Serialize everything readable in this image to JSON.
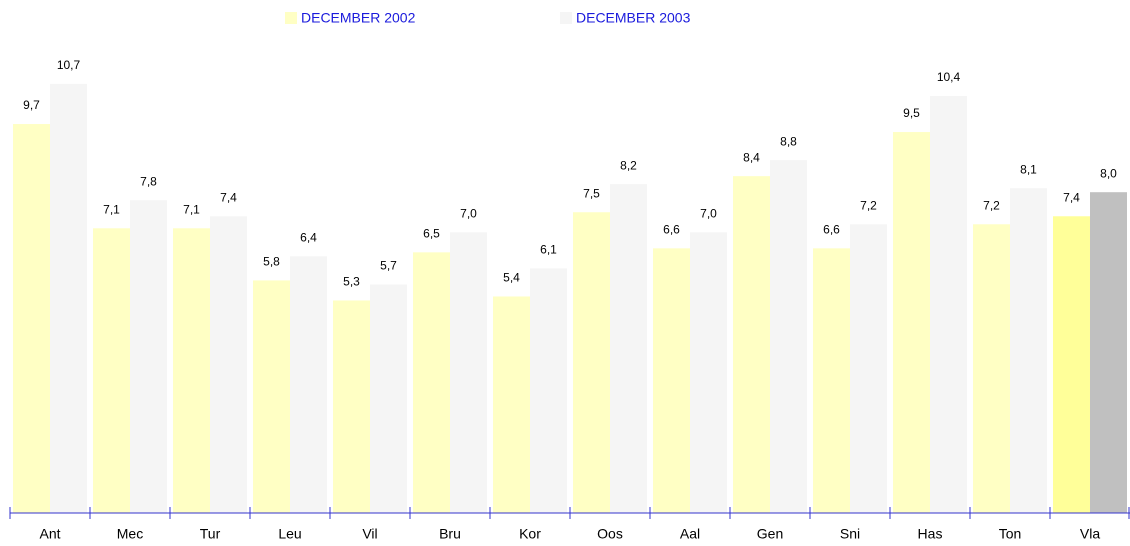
{
  "chart_data": {
    "type": "bar",
    "categories": [
      "Ant",
      "Mec",
      "Tur",
      "Leu",
      "Vil",
      "Bru",
      "Kor",
      "Oos",
      "Aal",
      "Gen",
      "Sni",
      "Has",
      "Ton",
      "Vla"
    ],
    "series": [
      {
        "name": "DECEMBER 2002",
        "color": "#ffffc4",
        "colors": [
          "#ffffc4",
          "#ffffc4",
          "#ffffc4",
          "#ffffc4",
          "#ffffc4",
          "#ffffc4",
          "#ffffc4",
          "#ffffc4",
          "#ffffc4",
          "#ffffc4",
          "#ffffc4",
          "#ffffc4",
          "#ffffc4",
          "#ffff99"
        ],
        "values": [
          9.7,
          7.1,
          7.1,
          5.8,
          5.3,
          6.5,
          5.4,
          7.5,
          6.6,
          8.4,
          6.6,
          9.5,
          7.2,
          7.4
        ],
        "value_labels": [
          "9,7",
          "7,1",
          "7,1",
          "5,8",
          "5,3",
          "6,5",
          "5,4",
          "7,5",
          "6,6",
          "8,4",
          "6,6",
          "9,5",
          "7,2",
          "7,4"
        ]
      },
      {
        "name": "DECEMBER 2003",
        "color": "#f5f5f5",
        "colors": [
          "#f5f5f5",
          "#f5f5f5",
          "#f5f5f5",
          "#f5f5f5",
          "#f5f5f5",
          "#f5f5f5",
          "#f5f5f5",
          "#f5f5f5",
          "#f5f5f5",
          "#f5f5f5",
          "#f5f5f5",
          "#f5f5f5",
          "#f5f5f5",
          "#c0c0c0"
        ],
        "values": [
          10.7,
          7.8,
          7.4,
          6.4,
          5.7,
          7.0,
          6.1,
          8.2,
          7.0,
          8.8,
          7.2,
          10.4,
          8.1,
          8.0
        ],
        "value_labels": [
          "10,7",
          "7,8",
          "7,4",
          "6,4",
          "5,7",
          "7,0",
          "6,1",
          "8,2",
          "7,0",
          "8,8",
          "7,2",
          "10,4",
          "8,1",
          "8,0"
        ]
      }
    ]
  }
}
